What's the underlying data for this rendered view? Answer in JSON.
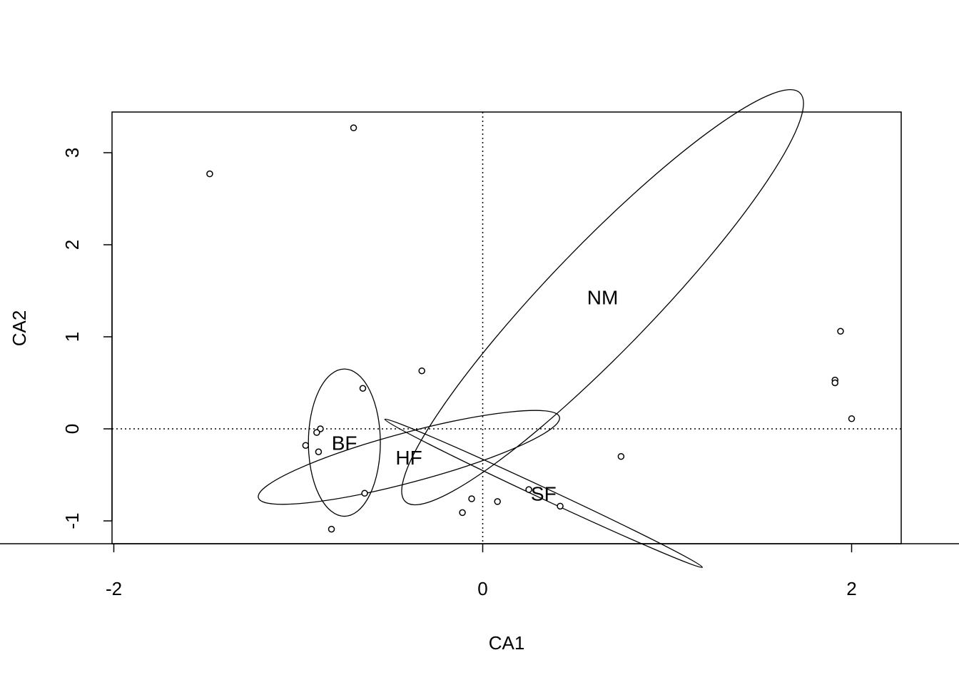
{
  "chart_data": {
    "type": "scatter",
    "title": "",
    "xlabel": "CA1",
    "ylabel": "CA2",
    "xlim": [
      -4,
      4.5
    ],
    "ylim": [
      -1.25,
      3.45
    ],
    "xticks": [
      -4,
      -2,
      0,
      2,
      4
    ],
    "yticks": [
      -1,
      0,
      1,
      2,
      3
    ],
    "reference_lines": {
      "x": 0,
      "y": 0,
      "style": "dotted"
    },
    "points": [
      {
        "x": -0.7,
        "y": 3.27
      },
      {
        "x": -1.48,
        "y": 2.77
      },
      {
        "x": -0.33,
        "y": 0.63
      },
      {
        "x": -0.65,
        "y": 0.44
      },
      {
        "x": -0.88,
        "y": 0.0
      },
      {
        "x": -0.9,
        "y": -0.04
      },
      {
        "x": -0.96,
        "y": -0.18
      },
      {
        "x": -0.89,
        "y": -0.25
      },
      {
        "x": -0.64,
        "y": -0.7
      },
      {
        "x": -0.82,
        "y": -1.09
      },
      {
        "x": 1.94,
        "y": 1.06
      },
      {
        "x": 1.91,
        "y": 0.53
      },
      {
        "x": 1.91,
        "y": 0.5
      },
      {
        "x": 2.0,
        "y": 0.11
      },
      {
        "x": 0.75,
        "y": -0.3
      },
      {
        "x": 0.25,
        "y": -0.66
      },
      {
        "x": 0.08,
        "y": -0.79
      },
      {
        "x": -0.06,
        "y": -0.76
      },
      {
        "x": -0.11,
        "y": -0.91
      },
      {
        "x": 0.42,
        "y": -0.84
      }
    ],
    "groups": [
      {
        "label": "NM",
        "center": [
          0.65,
          1.43
        ],
        "ellipse": {
          "a": 1.54,
          "b": 0.57,
          "angle": -46
        }
      },
      {
        "label": "BF",
        "center": [
          -0.75,
          -0.15
        ],
        "ellipse": {
          "a": 0.195,
          "b": 0.8,
          "angle": 0
        }
      },
      {
        "label": "HF",
        "center": [
          -0.4,
          -0.31
        ],
        "ellipse": {
          "a": 0.845,
          "b": 0.27,
          "angle": -15
        }
      },
      {
        "label": "SF",
        "center": [
          0.33,
          -0.7
        ],
        "ellipse": {
          "a": 0.95,
          "b": 0.06,
          "angle": 25
        }
      }
    ]
  }
}
